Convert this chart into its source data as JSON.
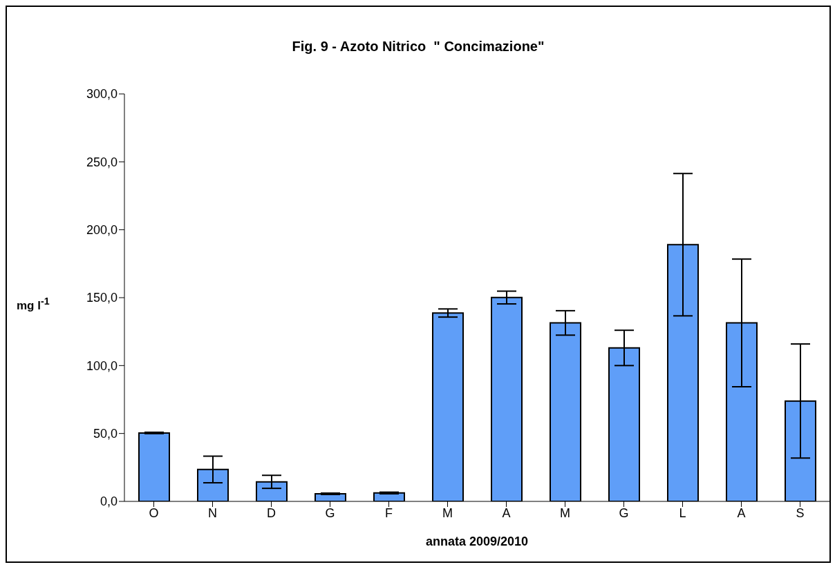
{
  "chart_data": {
    "type": "bar",
    "title": "Fig. 9 - Azoto Nitrico  \" Concimazione\"",
    "xlabel": "annata 2009/2010",
    "ylabel": "mg l$^{-1}$",
    "categories": [
      "O",
      "N",
      "D",
      "G",
      "F",
      "M",
      "A",
      "M",
      "G",
      "L",
      "A",
      "S"
    ],
    "values": [
      50.4,
      23.5,
      14.4,
      5.6,
      6.2,
      138.7,
      150.1,
      131.4,
      113.0,
      189.0,
      131.4,
      73.9
    ],
    "errors": [
      0.5,
      9.8,
      4.8,
      0.5,
      0.6,
      3.0,
      4.7,
      9.0,
      13.0,
      52.4,
      47.0,
      42.0
    ],
    "color": "#5f9ef8",
    "ylim": [
      0,
      300
    ],
    "yticks": [
      {
        "value": 0,
        "label": "0,0"
      },
      {
        "value": 50,
        "label": "50,0"
      },
      {
        "value": 100,
        "label": "100,0"
      },
      {
        "value": 150,
        "label": "150,0"
      },
      {
        "value": 200,
        "label": "200,0"
      },
      {
        "value": 250,
        "label": "250,0"
      },
      {
        "value": 300,
        "label": "300,0"
      }
    ],
    "grid": false,
    "legend": false
  }
}
